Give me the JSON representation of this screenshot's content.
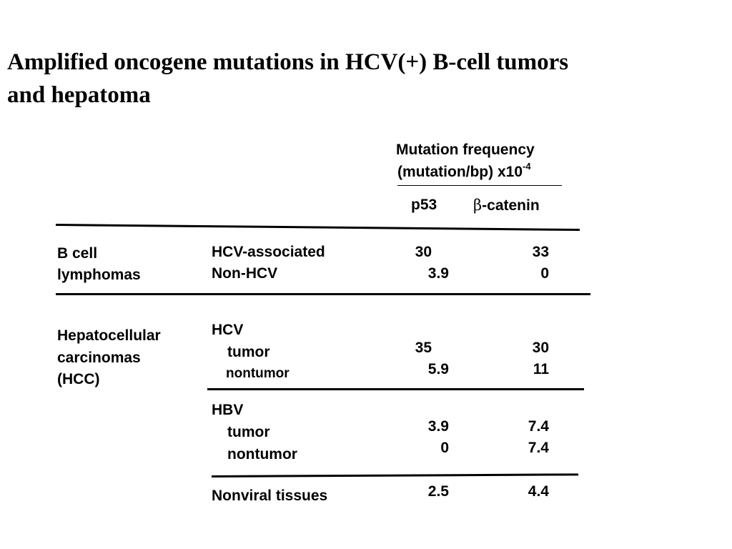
{
  "slide": {
    "title_line1": "Amplified oncogene mutations  in HCV(+) B-cell tumors",
    "title_line2": "and hepatoma"
  },
  "table": {
    "header": {
      "line1": "Mutation frequency",
      "line2_text": "(mutation/bp) x10",
      "line2_exponent": "-4",
      "col_p53": "p53",
      "col_beta_symbol": "β",
      "col_beta_rest": "-catenin"
    },
    "b_cell": {
      "label_line1": "B cell",
      "label_line2": "lymphomas",
      "rows": [
        {
          "label": "HCV-associated",
          "p53": "30",
          "beta": "33"
        },
        {
          "label": "Non-HCV",
          "p53": "3.9",
          "beta": "0"
        }
      ]
    },
    "hcc": {
      "label_line1": "Hepatocellular",
      "label_line2": "carcinomas",
      "label_line3": "(HCC)",
      "hcv": {
        "label": "HCV",
        "rows": [
          {
            "label": "tumor",
            "p53": "35",
            "beta": "30"
          },
          {
            "label": "nontumor",
            "p53": "5.9",
            "beta": "11"
          }
        ]
      },
      "hbv": {
        "label": "HBV",
        "rows": [
          {
            "label": "tumor",
            "p53": "3.9",
            "beta": "7.4"
          },
          {
            "label": "nontumor",
            "p53": "0",
            "beta": "7.4"
          }
        ]
      },
      "nonviral": {
        "label": "Nonviral tissues",
        "p53": "2.5",
        "beta": "4.4"
      }
    }
  }
}
